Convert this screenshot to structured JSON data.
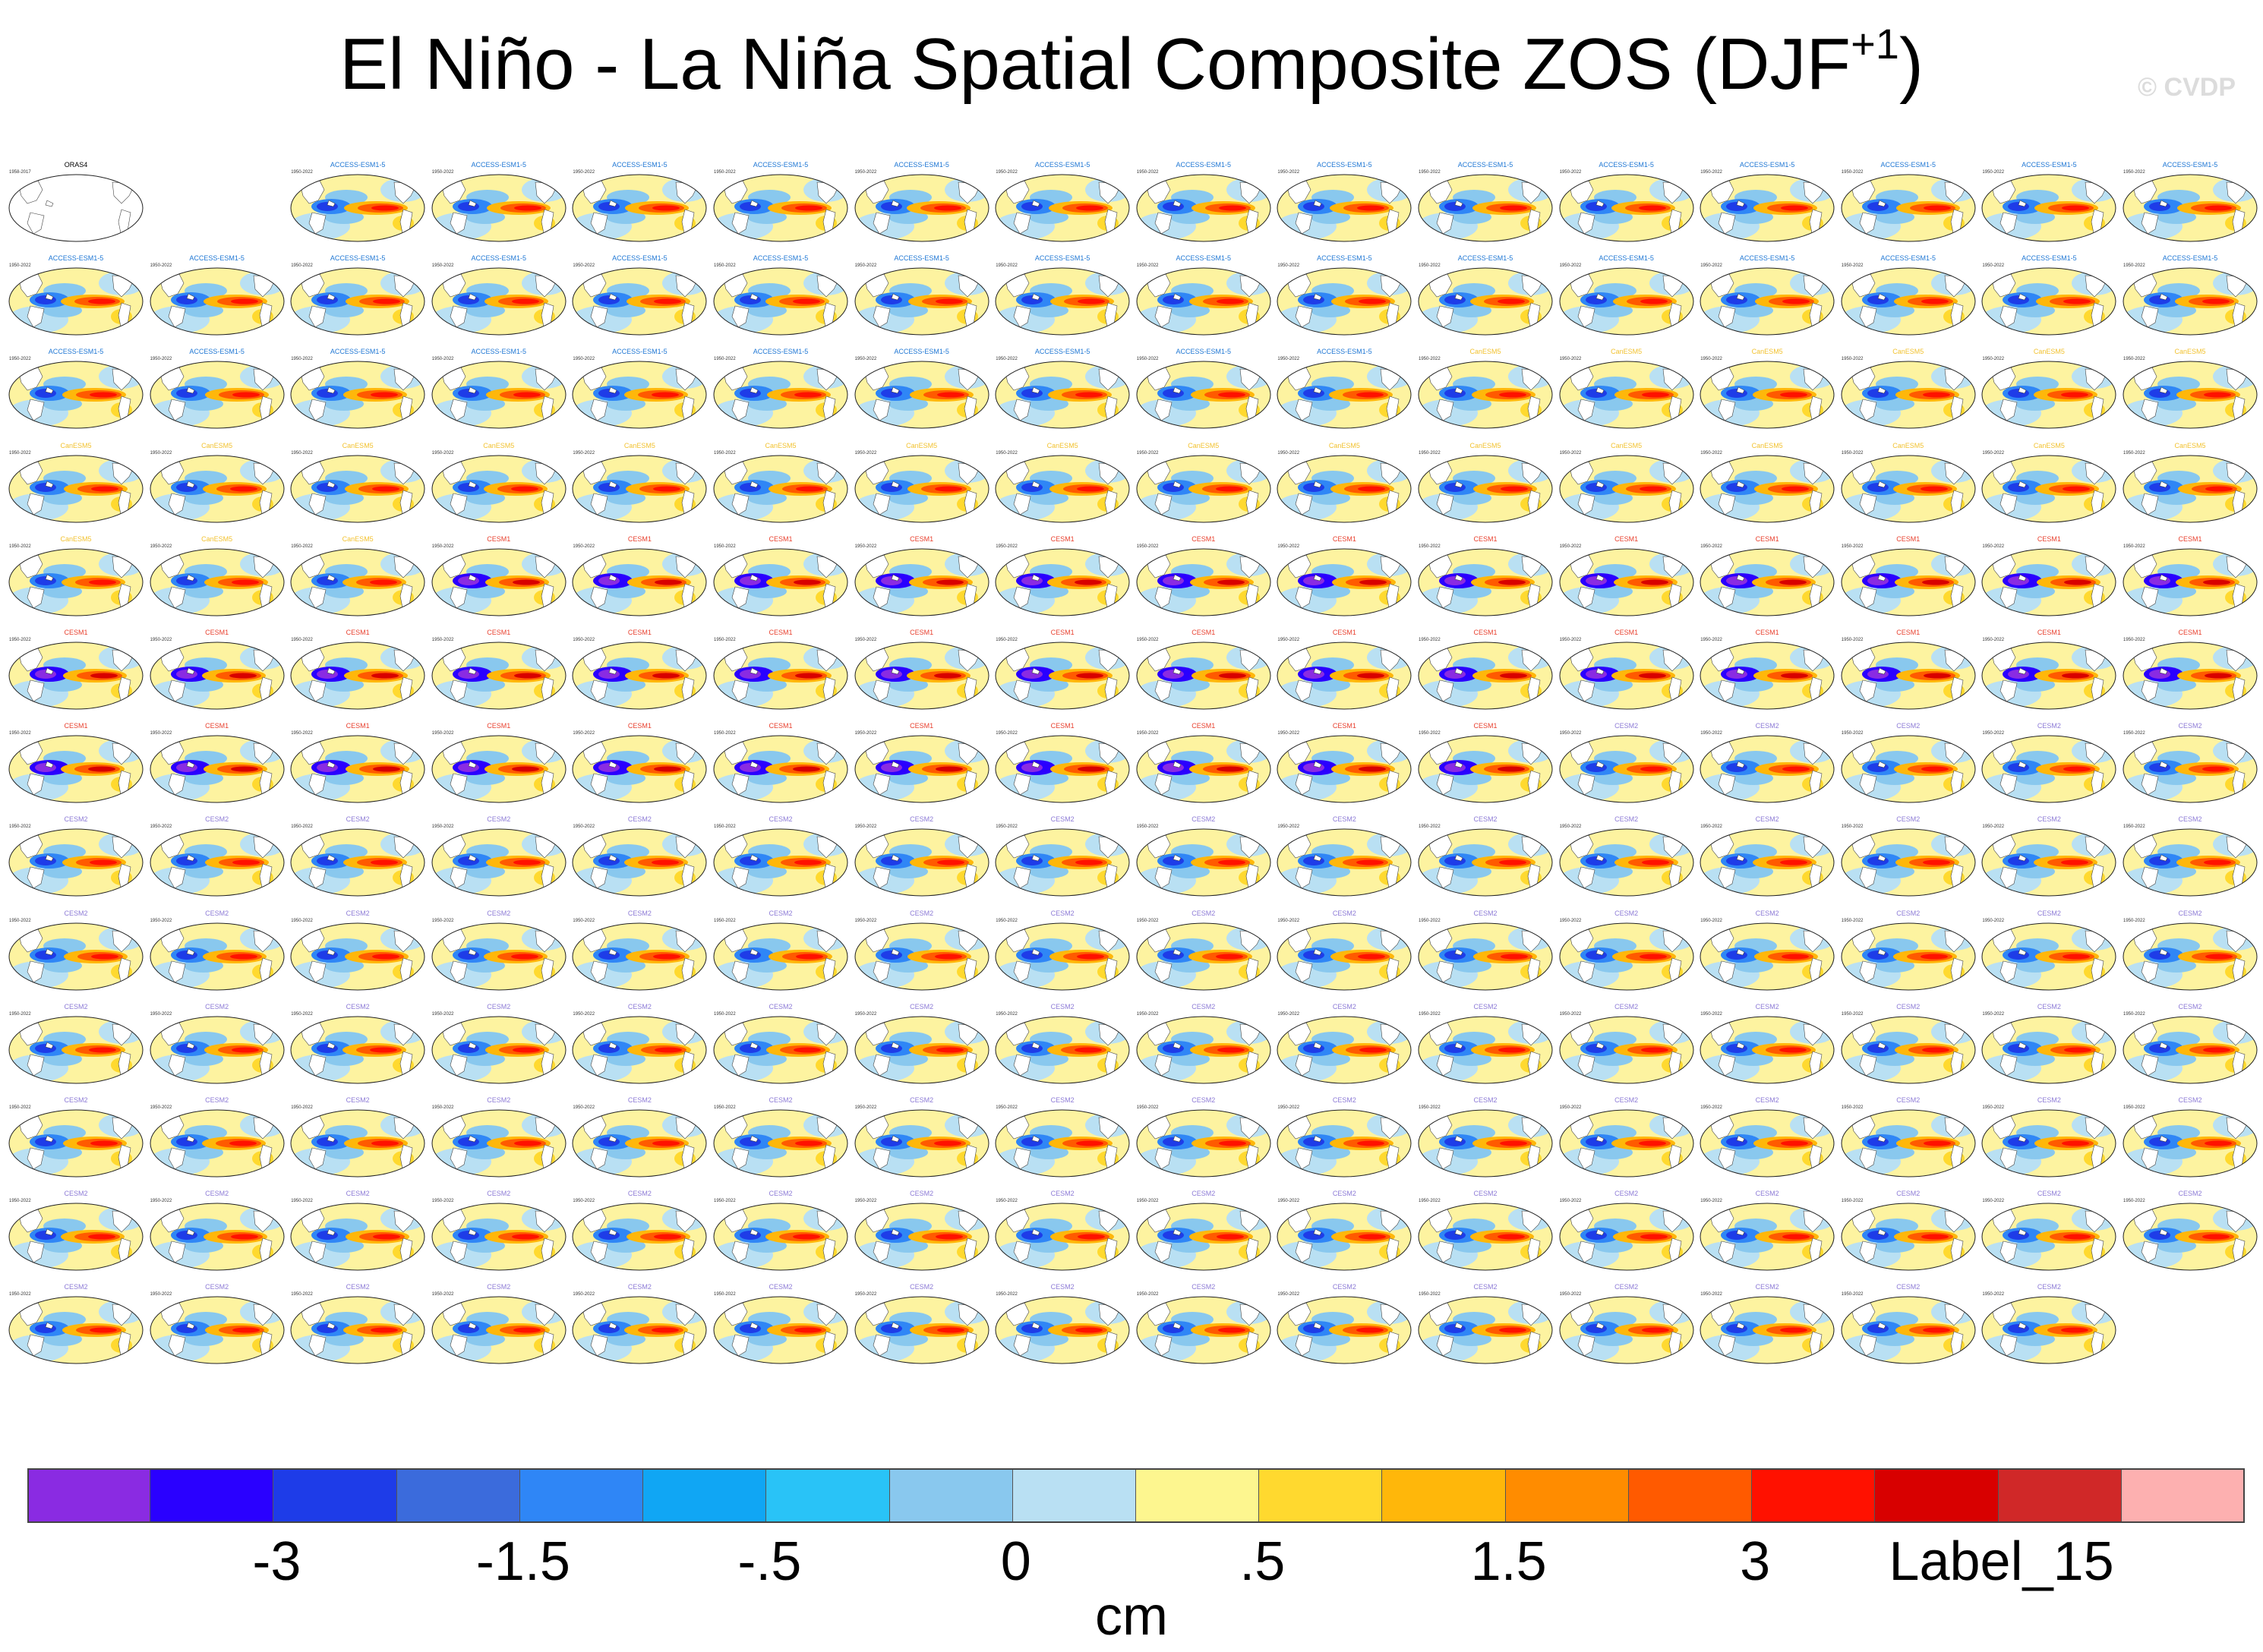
{
  "title": {
    "main": "El Niño - La Niña Spatial Composite ZOS (DJF",
    "superscript": "+1",
    "close": ")"
  },
  "credit": "© CVDP",
  "chart_data": {
    "type": "heatmap",
    "layout": "panel-grid",
    "grid": {
      "columns": 16,
      "rows": 13
    },
    "observation": {
      "name": "ORAS4",
      "years": "1958-2017",
      "row": 0,
      "col": 0
    },
    "panel_years": "1950-2022",
    "model_groups": [
      {
        "label": "ACCESS-ESM1-5",
        "color": "#1f77d4",
        "count": 40
      },
      {
        "label": "CanESM5",
        "color": "#f2c230",
        "count": 25
      },
      {
        "label": "CESM1",
        "color": "#e8412f",
        "count": 40
      },
      {
        "label": "CESM2",
        "color": "#8d7bd6",
        "count": 100
      }
    ],
    "colorbar": {
      "units": "cm",
      "colors": [
        "#8a2be2",
        "#2a00ff",
        "#1e3ce8",
        "#3b6bdc",
        "#2f86f6",
        "#10a6f4",
        "#29c3f7",
        "#89c8ee",
        "#b9e0f3",
        "#fdf68f",
        "#ffd92f",
        "#ffb70a",
        "#ff8c00",
        "#ff5a00",
        "#ff1100",
        "#d80000",
        "#d02828",
        "#fdb0b0"
      ],
      "tick_labels": [
        "-3",
        "-1.5",
        "-.5",
        "0",
        ".5",
        "1.5",
        "3",
        "Label_15"
      ]
    }
  }
}
